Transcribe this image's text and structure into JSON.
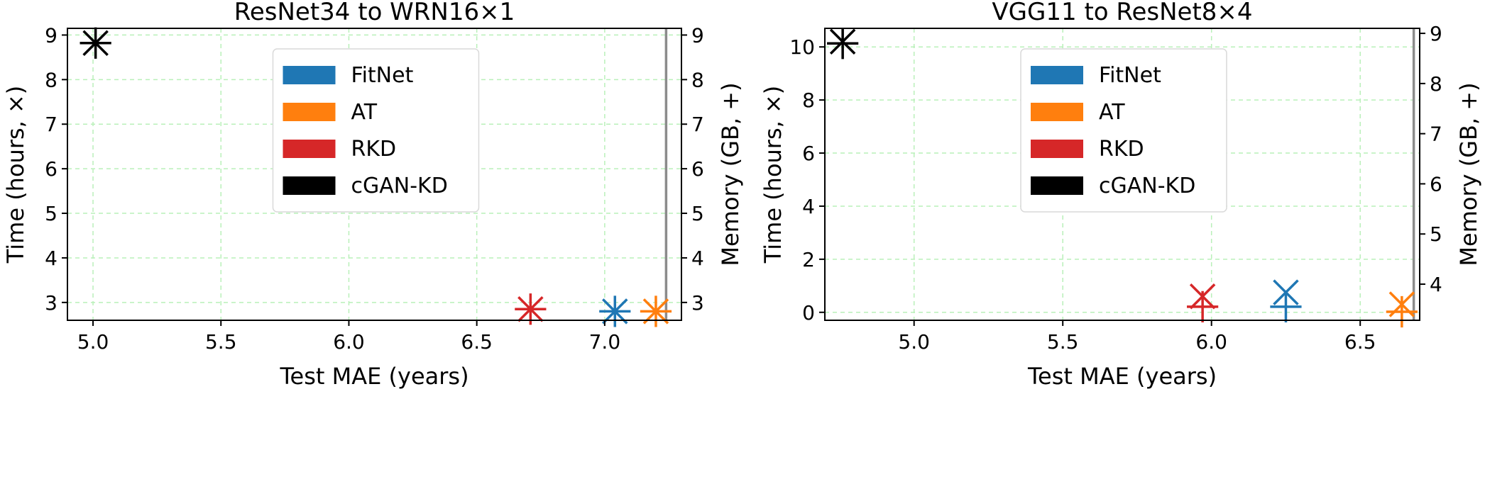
{
  "chart_data": [
    {
      "type": "scatter",
      "title": "ResNet34 to WRN16×1",
      "xlabel": "Test MAE (years)",
      "ylabel": "Time (hours, ×)",
      "y2label": "Memory (GB, +)",
      "xlim": [
        4.9,
        7.3
      ],
      "ylim": [
        2.6,
        9.15
      ],
      "y2lim": [
        2.6,
        9.15
      ],
      "xticks": [
        "5.0",
        "5.5",
        "6.0",
        "6.5",
        "7.0"
      ],
      "yticks": [
        "3",
        "4",
        "5",
        "6",
        "7",
        "8",
        "9"
      ],
      "y2ticks": [
        "3",
        "4",
        "5",
        "6",
        "7",
        "8",
        "9"
      ],
      "grid": true,
      "legend_position": "top-center",
      "vline_x": 7.24,
      "series": [
        {
          "name": "FitNet",
          "color": "#1f77b4",
          "x": 7.04,
          "time": 2.8,
          "memory": 2.8
        },
        {
          "name": "AT",
          "color": "#ff7f0e",
          "x": 7.2,
          "time": 2.8,
          "memory": 2.8
        },
        {
          "name": "RKD",
          "color": "#d62728",
          "x": 6.71,
          "time": 2.85,
          "memory": 2.85
        },
        {
          "name": "cGAN-KD",
          "color": "#000000",
          "x": 5.01,
          "time": 8.82,
          "memory": 8.82
        }
      ]
    },
    {
      "type": "scatter",
      "title": "VGG11 to ResNet8×4",
      "xlabel": "Test MAE (years)",
      "ylabel": "Time (hours, ×)",
      "y2label": "Memory (GB, +)",
      "xlim": [
        4.7,
        6.7
      ],
      "ylim": [
        -0.3,
        10.7
      ],
      "y2lim": [
        3.28,
        9.1
      ],
      "xticks": [
        "5.0",
        "5.5",
        "6.0",
        "6.5"
      ],
      "yticks": [
        "0",
        "2",
        "4",
        "6",
        "8",
        "10"
      ],
      "y2ticks": [
        "4",
        "5",
        "6",
        "7",
        "8",
        "9"
      ],
      "grid": true,
      "legend_position": "top-center",
      "vline_x": 6.68,
      "series": [
        {
          "name": "FitNet",
          "color": "#1f77b4",
          "x": 6.25,
          "time": 0.75,
          "memory": 3.55
        },
        {
          "name": "AT",
          "color": "#ff7f0e",
          "x": 6.64,
          "time": 0.3,
          "memory": 3.45
        },
        {
          "name": "RKD",
          "color": "#d62728",
          "x": 5.97,
          "time": 0.6,
          "memory": 3.55
        },
        {
          "name": "cGAN-KD",
          "color": "#000000",
          "x": 4.76,
          "time": 10.2,
          "memory": 8.8
        }
      ]
    }
  ]
}
